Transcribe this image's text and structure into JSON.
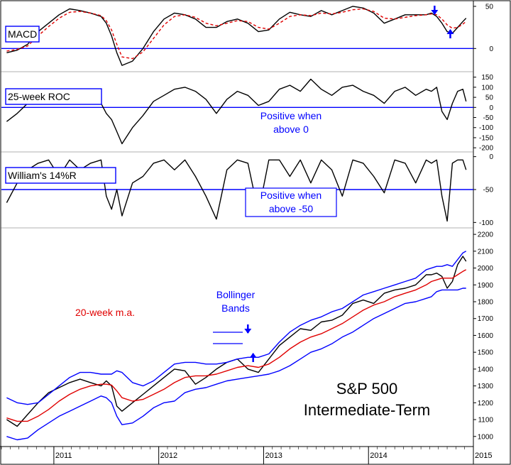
{
  "chart_data": {
    "type": "line",
    "x_axis": {
      "labels": [
        "2011",
        "2012",
        "2013",
        "2014",
        "2015"
      ]
    },
    "panels": [
      {
        "title": "MACD",
        "yticks": [
          50,
          0
        ],
        "ylim": [
          -25,
          55
        ],
        "x": [
          2010.55,
          2010.65,
          2010.75,
          2010.85,
          2010.95,
          2011.05,
          2011.15,
          2011.25,
          2011.35,
          2011.45,
          2011.5,
          2011.55,
          2011.6,
          2011.65,
          2011.75,
          2011.85,
          2011.95,
          2012.05,
          2012.15,
          2012.25,
          2012.35,
          2012.45,
          2012.55,
          2012.65,
          2012.75,
          2012.85,
          2012.95,
          2013.05,
          2013.15,
          2013.25,
          2013.35,
          2013.45,
          2013.55,
          2013.65,
          2013.75,
          2013.85,
          2013.95,
          2014.05,
          2014.15,
          2014.25,
          2014.35,
          2014.45,
          2014.55,
          2014.6,
          2014.65,
          2014.7,
          2014.75,
          2014.8,
          2014.85,
          2014.9,
          2014.93
        ],
        "series": [
          {
            "color": "#000000",
            "dash": "",
            "values": [
              -5,
              -2,
              5,
              20,
              30,
              40,
              47,
              45,
              42,
              38,
              30,
              15,
              -5,
              -20,
              -15,
              0,
              20,
              35,
              42,
              40,
              35,
              25,
              25,
              32,
              35,
              30,
              20,
              22,
              35,
              43,
              40,
              38,
              45,
              40,
              45,
              50,
              48,
              42,
              30,
              35,
              40,
              40,
              40,
              42,
              38,
              30,
              20,
              18,
              25,
              32,
              36
            ]
          },
          {
            "color": "#e00000",
            "dash": "4,3",
            "values": [
              -3,
              -1,
              3,
              15,
              26,
              36,
              43,
              44,
              42,
              39,
              33,
              22,
              5,
              -10,
              -12,
              -4,
              12,
              28,
              38,
              40,
              37,
              30,
              27,
              30,
              33,
              32,
              25,
              23,
              30,
              38,
              40,
              39,
              42,
              41,
              43,
              46,
              47,
              44,
              36,
              35,
              37,
              39,
              40,
              41,
              40,
              35,
              28,
              24,
              25,
              29,
              32
            ]
          }
        ],
        "annotations": [
          {
            "type": "arrow-down",
            "x": 2014.63,
            "color": "#0000ff"
          },
          {
            "type": "arrow-up",
            "x": 2014.78,
            "color": "#0000ff"
          }
        ]
      },
      {
        "title": "25-week ROC",
        "yticks": [
          150,
          100,
          50,
          0,
          -50,
          -100,
          -150,
          -200
        ],
        "ylim": [
          -210,
          170
        ],
        "x": [
          2010.55,
          2010.65,
          2010.75,
          2010.85,
          2010.95,
          2011.05,
          2011.15,
          2011.25,
          2011.35,
          2011.45,
          2011.5,
          2011.55,
          2011.6,
          2011.65,
          2011.75,
          2011.85,
          2011.95,
          2012.05,
          2012.15,
          2012.25,
          2012.35,
          2012.45,
          2012.55,
          2012.65,
          2012.75,
          2012.85,
          2012.95,
          2013.05,
          2013.15,
          2013.25,
          2013.35,
          2013.45,
          2013.55,
          2013.65,
          2013.75,
          2013.85,
          2013.95,
          2014.05,
          2014.15,
          2014.25,
          2014.35,
          2014.45,
          2014.55,
          2014.6,
          2014.65,
          2014.7,
          2014.75,
          2014.8,
          2014.85,
          2014.9,
          2014.93
        ],
        "series": [
          {
            "color": "#000000",
            "dash": "",
            "values": [
              -70,
              -30,
              20,
              60,
              80,
              60,
              70,
              50,
              40,
              20,
              -30,
              -60,
              -120,
              -180,
              -100,
              -40,
              30,
              60,
              90,
              100,
              80,
              40,
              -30,
              40,
              80,
              60,
              10,
              30,
              90,
              110,
              80,
              140,
              90,
              60,
              100,
              110,
              80,
              60,
              20,
              80,
              100,
              60,
              90,
              80,
              100,
              -20,
              -60,
              20,
              80,
              90,
              30
            ]
          }
        ],
        "annotations": [
          {
            "type": "text",
            "lines": [
              "Positive when",
              "above 0"
            ],
            "color": "#0000ff"
          }
        ]
      },
      {
        "title": "William's 14%R",
        "yticks": [
          0,
          -50,
          -100
        ],
        "ylim": [
          -105,
          5
        ],
        "x": [
          2010.55,
          2010.65,
          2010.75,
          2010.85,
          2010.95,
          2011.05,
          2011.15,
          2011.25,
          2011.35,
          2011.45,
          2011.5,
          2011.55,
          2011.6,
          2011.65,
          2011.75,
          2011.85,
          2011.95,
          2012.05,
          2012.15,
          2012.25,
          2012.35,
          2012.45,
          2012.55,
          2012.65,
          2012.75,
          2012.85,
          2012.95,
          2013.05,
          2013.15,
          2013.25,
          2013.35,
          2013.45,
          2013.55,
          2013.65,
          2013.75,
          2013.85,
          2013.95,
          2014.05,
          2014.15,
          2014.25,
          2014.35,
          2014.45,
          2014.55,
          2014.6,
          2014.65,
          2014.7,
          2014.75,
          2014.8,
          2014.85,
          2014.9,
          2014.93
        ],
        "series": [
          {
            "color": "#000000",
            "dash": "",
            "values": [
              -70,
              -40,
              -20,
              -10,
              -5,
              -30,
              -5,
              -20,
              -10,
              -5,
              -60,
              -80,
              -50,
              -90,
              -40,
              -30,
              -10,
              -5,
              -20,
              -5,
              -30,
              -60,
              -95,
              -20,
              -5,
              -10,
              -85,
              -5,
              -5,
              -30,
              -5,
              -40,
              -5,
              -20,
              -60,
              -5,
              -10,
              -30,
              -55,
              -5,
              -10,
              -40,
              -5,
              -10,
              -5,
              -60,
              -98,
              -10,
              -5,
              -5,
              -20
            ]
          }
        ],
        "annotations": [
          {
            "type": "text",
            "lines": [
              "Positive when",
              "above -50"
            ],
            "color": "#0000ff"
          }
        ]
      },
      {
        "title": "S&P 500",
        "subtitle": "Intermediate-Term",
        "yticks": [
          1000,
          1100,
          1200,
          1300,
          1400,
          1500,
          1600,
          1700,
          1800,
          1900,
          2000,
          2100,
          2200
        ],
        "ylim": [
          940,
          2230
        ],
        "x": [
          2010.55,
          2010.65,
          2010.75,
          2010.85,
          2010.95,
          2011.05,
          2011.15,
          2011.25,
          2011.35,
          2011.45,
          2011.5,
          2011.55,
          2011.6,
          2011.65,
          2011.75,
          2011.85,
          2011.95,
          2012.05,
          2012.15,
          2012.25,
          2012.35,
          2012.45,
          2012.55,
          2012.65,
          2012.75,
          2012.85,
          2012.95,
          2013.05,
          2013.15,
          2013.25,
          2013.35,
          2013.45,
          2013.55,
          2013.65,
          2013.75,
          2013.85,
          2013.95,
          2014.05,
          2014.15,
          2014.25,
          2014.35,
          2014.45,
          2014.55,
          2014.6,
          2014.65,
          2014.7,
          2014.75,
          2014.8,
          2014.85,
          2014.9,
          2014.93
        ],
        "series": [
          {
            "name": "S&P 500",
            "color": "#000000",
            "values": [
              1100,
              1060,
              1130,
              1200,
              1260,
              1290,
              1320,
              1340,
              1320,
              1300,
              1330,
              1300,
              1180,
              1150,
              1200,
              1250,
              1300,
              1350,
              1400,
              1390,
              1310,
              1350,
              1400,
              1440,
              1460,
              1400,
              1380,
              1460,
              1540,
              1590,
              1640,
              1630,
              1680,
              1690,
              1720,
              1790,
              1810,
              1790,
              1850,
              1870,
              1880,
              1900,
              1960,
              1960,
              1970,
              1950,
              1880,
              1920,
              2020,
              2070,
              2040
            ]
          },
          {
            "name": "20-week m.a.",
            "color": "#e00000",
            "values": [
              1110,
              1090,
              1090,
              1120,
              1160,
              1210,
              1250,
              1280,
              1300,
              1310,
              1310,
              1305,
              1270,
              1230,
              1210,
              1220,
              1250,
              1280,
              1320,
              1350,
              1360,
              1360,
              1370,
              1390,
              1410,
              1420,
              1410,
              1430,
              1470,
              1520,
              1560,
              1590,
              1610,
              1640,
              1670,
              1710,
              1750,
              1780,
              1800,
              1830,
              1850,
              1870,
              1900,
              1920,
              1930,
              1940,
              1940,
              1940,
              1960,
              1980,
              1990
            ]
          },
          {
            "name": "upper band",
            "color": "#0000ff",
            "values": [
              1230,
              1200,
              1190,
              1200,
              1250,
              1300,
              1350,
              1380,
              1380,
              1370,
              1370,
              1370,
              1390,
              1380,
              1320,
              1300,
              1330,
              1380,
              1430,
              1440,
              1440,
              1430,
              1430,
              1440,
              1460,
              1470,
              1470,
              1490,
              1560,
              1620,
              1660,
              1690,
              1710,
              1740,
              1760,
              1800,
              1840,
              1860,
              1880,
              1900,
              1920,
              1940,
              1990,
              2000,
              2010,
              2010,
              2020,
              2010,
              2050,
              2090,
              2100
            ]
          },
          {
            "name": "lower band",
            "color": "#0000ff",
            "values": [
              1000,
              980,
              990,
              1040,
              1080,
              1120,
              1150,
              1180,
              1210,
              1240,
              1230,
              1200,
              1120,
              1070,
              1080,
              1120,
              1170,
              1200,
              1210,
              1260,
              1280,
              1290,
              1310,
              1330,
              1340,
              1350,
              1360,
              1370,
              1390,
              1420,
              1460,
              1500,
              1520,
              1550,
              1590,
              1620,
              1660,
              1700,
              1730,
              1760,
              1790,
              1800,
              1820,
              1830,
              1860,
              1870,
              1870,
              1870,
              1870,
              1880,
              1880
            ]
          }
        ],
        "annotations": [
          {
            "type": "text",
            "lines": [
              "20-week m.a."
            ],
            "color": "#e00000"
          },
          {
            "type": "text",
            "lines": [
              "Bollinger",
              "Bands"
            ],
            "color": "#0000ff"
          },
          {
            "type": "arrow-down",
            "x": 2012.85,
            "color": "#0000ff"
          },
          {
            "type": "arrow-up",
            "x": 2012.9,
            "color": "#0000ff"
          }
        ]
      }
    ]
  }
}
